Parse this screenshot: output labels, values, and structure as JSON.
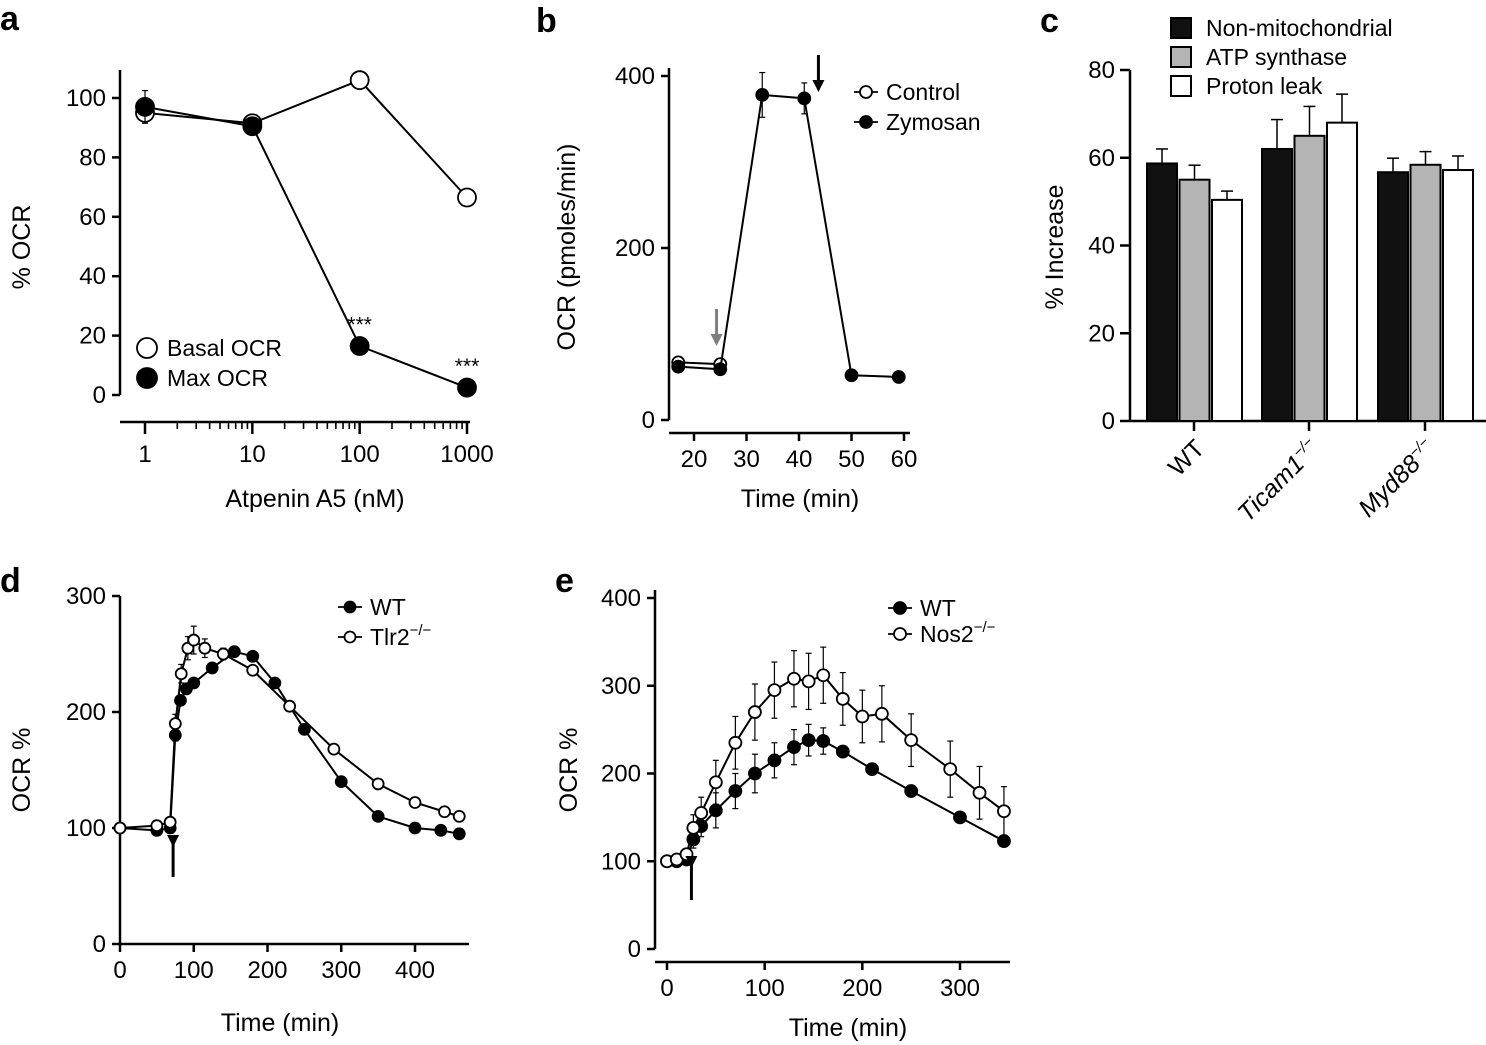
{
  "chart_data": [
    {
      "panel": "a",
      "type": "line",
      "xscale": "log",
      "xlabel": "Atpenin A5 (nM)",
      "ylabel": "% OCR",
      "xlim": [
        1,
        1000
      ],
      "ylim": [
        0,
        110
      ],
      "xticks": [
        "1",
        "10",
        "100",
        "1000"
      ],
      "yticks": [
        "0",
        "20",
        "40",
        "60",
        "80",
        "100"
      ],
      "legend_position": "bottom-left",
      "series": [
        {
          "name": "Basal OCR",
          "marker": "open",
          "x": [
            1,
            10,
            100,
            1000
          ],
          "values": [
            95,
            91.5,
            106,
            66.5
          ],
          "errors": [
            0,
            0,
            0,
            0
          ]
        },
        {
          "name": "Max OCR",
          "marker": "filled",
          "x": [
            1,
            10,
            100,
            1000
          ],
          "values": [
            97,
            90.5,
            16.5,
            2.5
          ],
          "errors": [
            5.5,
            0,
            0,
            0
          ]
        }
      ],
      "annotations": [
        {
          "text": "***",
          "x": 100,
          "y": 17
        },
        {
          "text": "***",
          "x": 1000,
          "y": 3
        }
      ]
    },
    {
      "panel": "b",
      "type": "line",
      "xlabel": "Time (min)",
      "ylabel": "OCR (pmoles/min)",
      "xlim": [
        15,
        61
      ],
      "ylim": [
        0,
        400
      ],
      "xticks": [
        "20",
        "30",
        "40",
        "50",
        "60"
      ],
      "yticks": [
        "0",
        "200",
        "400"
      ],
      "legend_position": "top-right",
      "series": [
        {
          "name": "Control",
          "marker": "open",
          "x": [
            17,
            25
          ],
          "values": [
            67,
            65
          ],
          "errors": [
            0,
            0
          ]
        },
        {
          "name": "Zymosan",
          "marker": "filled",
          "x": [
            17,
            25,
            33,
            41,
            50,
            59
          ],
          "values": [
            62,
            59,
            378,
            374,
            52,
            50
          ],
          "errors": [
            0,
            0,
            26,
            18,
            0,
            0
          ]
        }
      ],
      "arrows": [
        {
          "x": 24.3,
          "color": "gray"
        },
        {
          "x": 43.7,
          "color": "black"
        }
      ]
    },
    {
      "panel": "c",
      "type": "bar",
      "ylabel": "% Increase",
      "ylim": [
        0,
        80
      ],
      "yticks": [
        "0",
        "20",
        "40",
        "60",
        "80"
      ],
      "legend_position": "top",
      "categories": [
        "WT",
        "Ticam1",
        "Myd88"
      ],
      "category_superscript": [
        "",
        "−/−",
        "−/−"
      ],
      "series": [
        {
          "name": "Non-mitochondrial",
          "color": "#111111",
          "values": [
            58.7,
            62,
            56.7
          ],
          "errors": [
            3.3,
            6.7,
            3.2
          ]
        },
        {
          "name": "ATP synthase",
          "color": "#b4b4b4",
          "values": [
            55,
            65,
            58.4
          ],
          "errors": [
            3.3,
            6.7,
            3
          ]
        },
        {
          "name": "Proton leak",
          "color": "#ffffff",
          "values": [
            50.4,
            68,
            57.2
          ],
          "errors": [
            2,
            6.5,
            3.2
          ]
        }
      ]
    },
    {
      "panel": "d",
      "type": "line",
      "xlabel": "Time (min)",
      "ylabel": "OCR %",
      "xlim": [
        0,
        460
      ],
      "ylim": [
        0,
        300
      ],
      "xticks": [
        "0",
        "100",
        "200",
        "300",
        "400"
      ],
      "yticks": [
        "0",
        "100",
        "200",
        "300"
      ],
      "legend_position": "top-right",
      "series": [
        {
          "name": "WT",
          "marker": "filled",
          "x": [
            0,
            50,
            68,
            75,
            82,
            90,
            100,
            125,
            155,
            180,
            210,
            250,
            300,
            350,
            400,
            435,
            460
          ],
          "values": [
            100,
            98,
            100,
            180,
            210,
            220,
            225,
            238,
            252,
            248,
            225,
            185,
            140,
            110,
            100,
            98,
            95
          ],
          "errors": [
            0,
            0,
            0,
            5,
            0,
            0,
            0,
            0,
            0,
            0,
            0,
            0,
            0,
            0,
            0,
            0,
            0
          ]
        },
        {
          "name": "Tlr2",
          "superscript": "−/−",
          "marker": "open",
          "x": [
            0,
            50,
            68,
            75,
            83,
            92,
            100,
            115,
            140,
            180,
            230,
            290,
            350,
            400,
            440,
            460
          ],
          "values": [
            100,
            102,
            105,
            190,
            233,
            255,
            262,
            255,
            250,
            236,
            205,
            168,
            138,
            122,
            114,
            110
          ],
          "errors": [
            0,
            0,
            0,
            8,
            8,
            10,
            12,
            8,
            5,
            0,
            0,
            0,
            0,
            0,
            0,
            0
          ]
        }
      ],
      "arrows": [
        {
          "x": 72
        }
      ]
    },
    {
      "panel": "e",
      "type": "line",
      "xlabel": "Time (min)",
      "ylabel": "OCR %",
      "xlim": [
        0,
        350
      ],
      "ylim": [
        0,
        400
      ],
      "xticks": [
        "0",
        "100",
        "200",
        "300"
      ],
      "yticks": [
        "0",
        "100",
        "200",
        "300",
        "400"
      ],
      "legend_position": "top-right",
      "series": [
        {
          "name": "WT",
          "marker": "filled",
          "x": [
            0,
            10,
            20,
            27,
            35,
            50,
            70,
            90,
            110,
            130,
            145,
            160,
            180,
            210,
            250,
            300,
            345
          ],
          "values": [
            100,
            100,
            102,
            125,
            140,
            158,
            180,
            200,
            215,
            230,
            238,
            237,
            225,
            205,
            180,
            150,
            123
          ],
          "errors": [
            0,
            0,
            0,
            10,
            12,
            20,
            20,
            22,
            20,
            20,
            18,
            15,
            5,
            0,
            0,
            0,
            0
          ]
        },
        {
          "name": "Nos2",
          "superscript": "−/−",
          "marker": "open",
          "x": [
            0,
            10,
            20,
            27,
            35,
            50,
            70,
            90,
            110,
            130,
            145,
            160,
            180,
            200,
            220,
            250,
            290,
            320,
            345
          ],
          "values": [
            100,
            102,
            108,
            138,
            155,
            190,
            235,
            270,
            295,
            308,
            305,
            312,
            285,
            265,
            268,
            238,
            205,
            178,
            157
          ],
          "errors": [
            0,
            0,
            0,
            15,
            18,
            25,
            30,
            32,
            32,
            32,
            32,
            32,
            30,
            30,
            32,
            30,
            32,
            30,
            28
          ]
        }
      ],
      "arrows": [
        {
          "x": 25
        }
      ]
    }
  ]
}
